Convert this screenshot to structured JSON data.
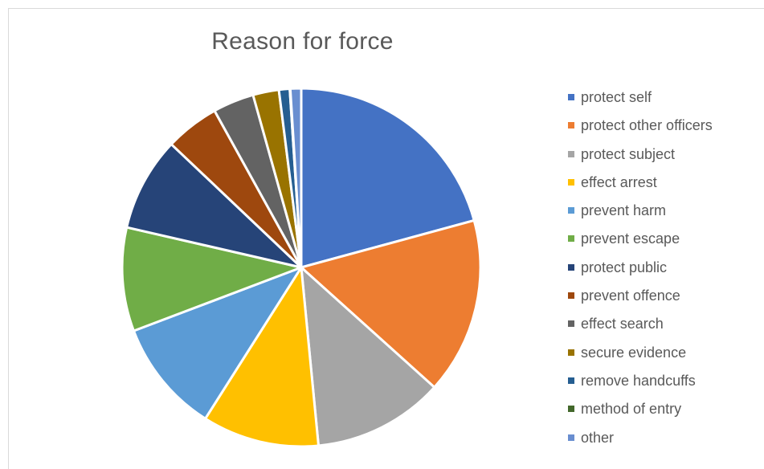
{
  "chart_data": {
    "type": "pie",
    "title": "Reason for force",
    "legend_position": "right",
    "slices": [
      {
        "label": "protect self",
        "value": 21.3,
        "color": "#4472C4"
      },
      {
        "label": "protect other officers",
        "value": 16.3,
        "color": "#ED7D31"
      },
      {
        "label": "protect subject",
        "value": 12.1,
        "color": "#A5A5A5"
      },
      {
        "label": "effect arrest",
        "value": 10.8,
        "color": "#FFC000"
      },
      {
        "label": "prevent harm",
        "value": 10.5,
        "color": "#5B9BD5"
      },
      {
        "label": "prevent escape",
        "value": 9.6,
        "color": "#70AD47"
      },
      {
        "label": "protect public",
        "value": 8.7,
        "color": "#264478"
      },
      {
        "label": "prevent offence",
        "value": 5.0,
        "color": "#9E480E"
      },
      {
        "label": "effect search",
        "value": 3.8,
        "color": "#636363"
      },
      {
        "label": "secure evidence",
        "value": 2.4,
        "color": "#997300"
      },
      {
        "label": "remove handcuffs",
        "value": 1.0,
        "color": "#255E91"
      },
      {
        "label": "method of entry",
        "value": 0.05,
        "color": "#43682B"
      },
      {
        "label": "other",
        "value": 1.0,
        "color": "#698ED0"
      }
    ]
  }
}
